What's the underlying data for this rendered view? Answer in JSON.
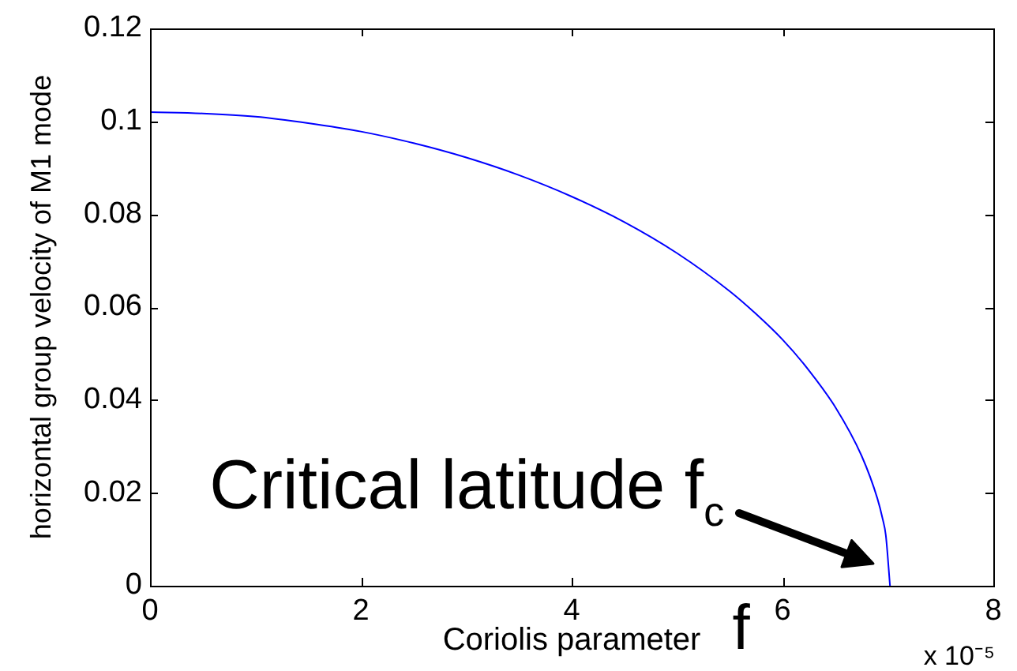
{
  "chart_data": {
    "type": "line",
    "xlabel": "Coriolis parameter",
    "ylabel": "horizontal group velocity of M1 mode",
    "x": [
      0,
      0.5,
      1,
      1.5,
      2,
      2.5,
      3,
      3.5,
      4,
      4.5,
      5,
      5.5,
      5.75,
      6,
      6.25,
      6.5,
      6.75,
      6.9,
      6.95,
      6.98,
      7.02
    ],
    "values": [
      0.102,
      0.1017,
      0.101,
      0.0996,
      0.0978,
      0.0953,
      0.0922,
      0.0884,
      0.0838,
      0.0783,
      0.0716,
      0.0634,
      0.0585,
      0.053,
      0.0464,
      0.0385,
      0.028,
      0.0188,
      0.0144,
      0.0109,
      0
    ],
    "color": "#0000ff",
    "marker": "none",
    "legend": false,
    "xlim": [
      0,
      8
    ],
    "xticks": [
      0,
      2,
      4,
      6,
      8
    ],
    "ylim": [
      0,
      0.12
    ],
    "yticks": [
      0,
      0.02,
      0.04,
      0.06,
      0.08,
      0.1,
      0.12
    ],
    "annotations": [
      {
        "text": "Critical latitude f$_{c}$",
        "x": 7.02,
        "y": 0
      },
      "f",
      "x 10⁻⁵"
    ]
  }
}
